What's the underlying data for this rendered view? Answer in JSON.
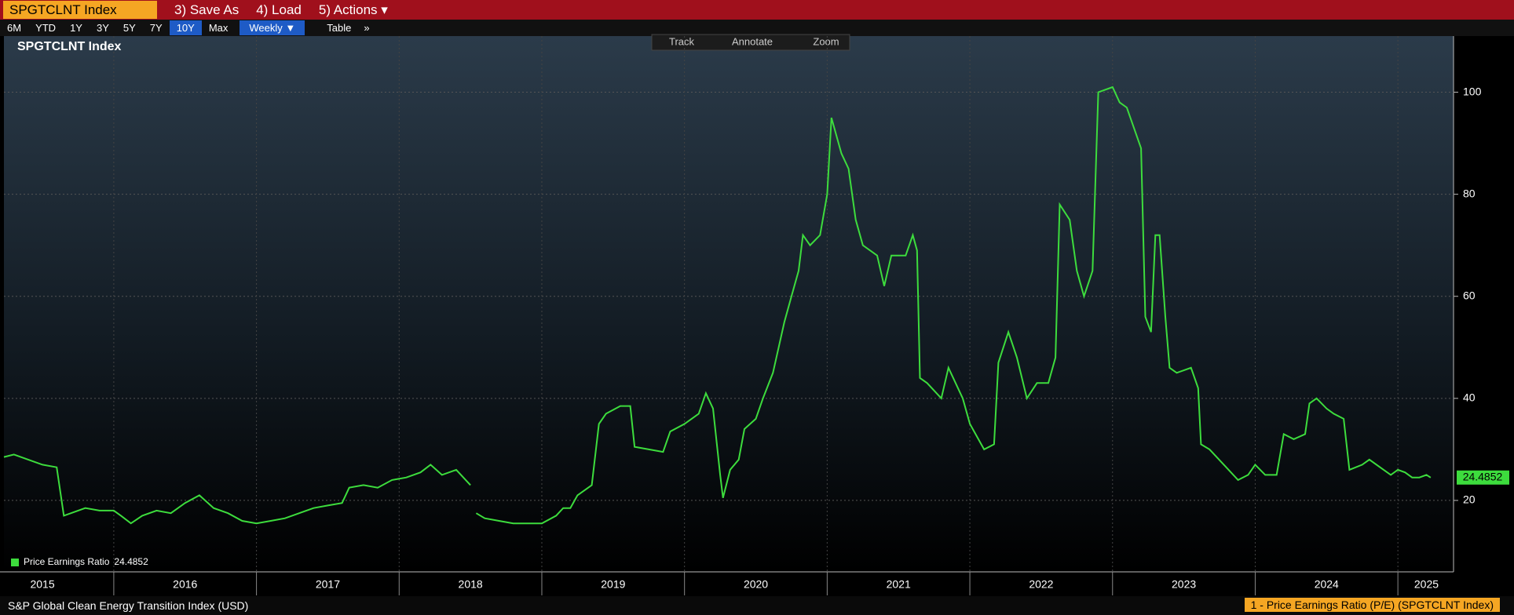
{
  "ui": {
    "ticker": "SPGTCLNT Index",
    "menu": [
      "3) Save As",
      "4) Load",
      "5) Actions ▾"
    ],
    "ranges": [
      "6M",
      "YTD",
      "1Y",
      "3Y",
      "5Y",
      "7Y",
      "10Y",
      "Max"
    ],
    "active_range": "10Y",
    "frequency": "Weekly ▼",
    "table": "Table",
    "more": "»",
    "tools": [
      "Track",
      "Annotate",
      "Zoom"
    ],
    "footer_left": "S&P Global Clean Energy Transition Index (USD)",
    "footer_right": "1 - Price Earnings Ratio (P/E) (SPGTCLNT Index)"
  },
  "chart_data": {
    "type": "line",
    "title": "SPGTCLNT Index",
    "x": [
      2015.23,
      2015.3,
      2015.4,
      2015.5,
      2015.6,
      2015.65,
      2015.7,
      2015.8,
      2015.9,
      2016.0,
      2016.05,
      2016.12,
      2016.2,
      2016.3,
      2016.4,
      2016.5,
      2016.6,
      2016.7,
      2016.8,
      2016.9,
      2017.0,
      2017.1,
      2017.2,
      2017.3,
      2017.4,
      2017.5,
      2017.6,
      2017.65,
      2017.75,
      2017.85,
      2017.95,
      2018.05,
      2018.15,
      2018.22,
      2018.3,
      2018.4,
      2018.5,
      2018.52,
      2018.54,
      2018.6,
      2018.7,
      2018.8,
      2018.9,
      2019.0,
      2019.1,
      2019.15,
      2019.2,
      2019.25,
      2019.35,
      2019.4,
      2019.45,
      2019.55,
      2019.62,
      2019.65,
      2019.75,
      2019.85,
      2019.9,
      2020.0,
      2020.1,
      2020.15,
      2020.2,
      2020.25,
      2020.27,
      2020.32,
      2020.38,
      2020.42,
      2020.5,
      2020.55,
      2020.62,
      2020.7,
      2020.75,
      2020.8,
      2020.83,
      2020.88,
      2020.95,
      2021.0,
      2021.03,
      2021.1,
      2021.15,
      2021.2,
      2021.25,
      2021.35,
      2021.4,
      2021.45,
      2021.55,
      2021.6,
      2021.63,
      2021.65,
      2021.7,
      2021.8,
      2021.85,
      2021.95,
      2022.0,
      2022.1,
      2022.17,
      2022.2,
      2022.27,
      2022.33,
      2022.4,
      2022.47,
      2022.55,
      2022.6,
      2022.63,
      2022.7,
      2022.75,
      2022.8,
      2022.86,
      2022.9,
      2023.0,
      2023.05,
      2023.1,
      2023.15,
      2023.2,
      2023.23,
      2023.27,
      2023.3,
      2023.33,
      2023.37,
      2023.4,
      2023.45,
      2023.55,
      2023.6,
      2023.62,
      2023.68,
      2023.78,
      2023.88,
      2023.95,
      2024.0,
      2024.07,
      2024.15,
      2024.2,
      2024.27,
      2024.35,
      2024.38,
      2024.43,
      2024.5,
      2024.55,
      2024.62,
      2024.66,
      2024.75,
      2024.8,
      2024.9,
      2024.95,
      2025.0,
      2025.05,
      2025.1,
      2025.15,
      2025.2,
      2025.23
    ],
    "series": [
      {
        "name": "Price Earnings Ratio",
        "color": "#3ddc3d",
        "last_value": 24.4852,
        "values": [
          28.5,
          29,
          28,
          27,
          26.5,
          17,
          17.5,
          18.5,
          18,
          18,
          17,
          15.5,
          17,
          18,
          17.5,
          19.5,
          21,
          18.5,
          17.5,
          16,
          15.5,
          16,
          16.5,
          17.5,
          18.5,
          19,
          19.5,
          22.5,
          23,
          22.5,
          24,
          24.5,
          25.5,
          27,
          25,
          26,
          23,
          null,
          17.5,
          16.5,
          16,
          15.5,
          15.5,
          15.5,
          17,
          18.5,
          18.5,
          21,
          23,
          35,
          37,
          38.5,
          38.5,
          30.5,
          30,
          29.5,
          33.5,
          35,
          37,
          41,
          38,
          25,
          20.5,
          26,
          28,
          34,
          36,
          40,
          45,
          55,
          60,
          65,
          72,
          70,
          72,
          80,
          95,
          88,
          85,
          75,
          70,
          68,
          62,
          68,
          68,
          72,
          69,
          44,
          43,
          40,
          46,
          40,
          35,
          30,
          31,
          47,
          53,
          48,
          40,
          43,
          43,
          48,
          78,
          75,
          65,
          60,
          65,
          100,
          101,
          98,
          97,
          93,
          89,
          56,
          53,
          72,
          72,
          56,
          46,
          45,
          46,
          42,
          31,
          30,
          27,
          24,
          25,
          27,
          25,
          25,
          33,
          32,
          33,
          39,
          40,
          38,
          37,
          36,
          26,
          27,
          28,
          26,
          25,
          26,
          25.5,
          24.5,
          24.5,
          25,
          24.4852
        ]
      }
    ],
    "xlim": [
      2015.23,
      2025.39
    ],
    "ylim": [
      6,
      111
    ],
    "yticks": [
      20,
      40,
      60,
      80,
      100
    ],
    "xticks": [
      {
        "value": 2015.5,
        "label": "2015"
      },
      {
        "value": 2016.5,
        "label": "2016"
      },
      {
        "value": 2017.5,
        "label": "2017"
      },
      {
        "value": 2018.5,
        "label": "2018"
      },
      {
        "value": 2019.5,
        "label": "2019"
      },
      {
        "value": 2020.5,
        "label": "2020"
      },
      {
        "value": 2021.5,
        "label": "2021"
      },
      {
        "value": 2022.5,
        "label": "2022"
      },
      {
        "value": 2023.5,
        "label": "2023"
      },
      {
        "value": 2024.5,
        "label": "2024"
      },
      {
        "value": 2025.2,
        "label": "2025"
      }
    ],
    "xgrid": [
      2016,
      2017,
      2018,
      2019,
      2020,
      2021,
      2022,
      2023,
      2024,
      2025
    ],
    "grid": true,
    "legend": "bottom-left"
  }
}
